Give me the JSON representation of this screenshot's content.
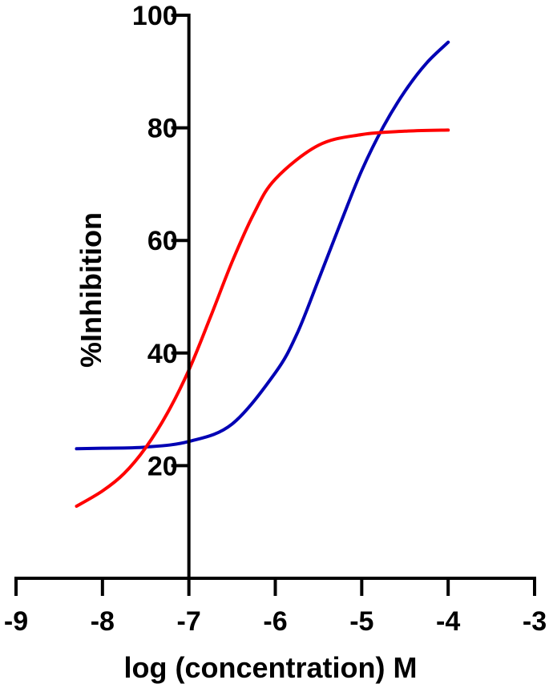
{
  "chart_data": {
    "type": "line",
    "title": "",
    "xlabel": "log (concentration) M",
    "ylabel": "%Inhibition",
    "xlim": [
      -9,
      -3
    ],
    "ylim": [
      0,
      100
    ],
    "x_ticks": [
      -9,
      -8,
      -7,
      -6,
      -5,
      -4,
      -3
    ],
    "y_ticks": [
      20,
      40,
      60,
      80,
      100
    ],
    "grid": false,
    "legend": "none",
    "series": [
      {
        "color": "#0000b4",
        "x": [
          -8.3,
          -8.0,
          -7.5,
          -7.0,
          -6.5,
          -6.0,
          -5.75,
          -5.5,
          -5.25,
          -5.0,
          -4.75,
          -4.5,
          -4.25,
          -4.0
        ],
        "y": [
          23.0,
          23.1,
          23.3,
          24.3,
          27.4,
          36.5,
          43.4,
          53.0,
          62.9,
          72.4,
          80.2,
          86.5,
          91.5,
          95.2
        ]
      },
      {
        "color": "#ff0000",
        "x": [
          -8.3,
          -8.0,
          -7.75,
          -7.5,
          -7.25,
          -7.0,
          -6.75,
          -6.5,
          -6.25,
          -6.0,
          -5.5,
          -5.0,
          -4.5,
          -4.0
        ],
        "y": [
          12.8,
          15.5,
          18.6,
          23.2,
          29.3,
          37.0,
          46.4,
          56.2,
          64.7,
          70.9,
          76.9,
          78.8,
          79.4,
          79.6
        ]
      }
    ]
  }
}
